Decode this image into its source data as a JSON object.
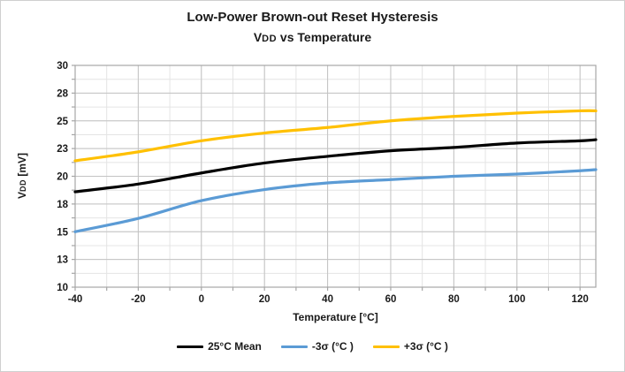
{
  "chart": {
    "title_line1": "Low-Power Brown-out Reset Hysteresis",
    "subtitle": {
      "prefix": "V",
      "sub": "DD",
      "rest": " vs Temperature"
    },
    "y_axis_title": {
      "prefix": "V",
      "sub": "DD",
      "rest": " [mV]"
    },
    "x_axis_title": "Temperature [°C]"
  },
  "chart_data": {
    "type": "line",
    "title": "Low-Power Brown-out Reset Hysteresis — VDD vs Temperature",
    "xlabel": "Temperature [°C]",
    "ylabel": "VDD [mV]",
    "xlim": [
      -40,
      125
    ],
    "ylim": [
      10,
      30
    ],
    "grid": "major+minor",
    "legend_position": "bottom",
    "x": [
      -40,
      -20,
      0,
      20,
      40,
      60,
      80,
      100,
      120,
      125
    ],
    "series": [
      {
        "name": "25°C Mean",
        "color": "#000000",
        "values": [
          18.6,
          19.3,
          20.3,
          21.2,
          21.8,
          22.3,
          22.6,
          23.0,
          23.2,
          23.3
        ]
      },
      {
        "name": "-3σ (°C )",
        "color": "#5B9BD5",
        "values": [
          15.0,
          16.2,
          17.8,
          18.8,
          19.4,
          19.7,
          20.0,
          20.2,
          20.5,
          20.6
        ]
      },
      {
        "name": "+3σ (°C )",
        "color": "#FFC000",
        "values": [
          21.4,
          22.2,
          23.2,
          23.9,
          24.4,
          25.0,
          25.4,
          25.7,
          25.9,
          25.9
        ]
      }
    ],
    "x_major_ticks": [
      -40,
      -20,
      0,
      20,
      40,
      60,
      80,
      100,
      120
    ],
    "x_tick_labels": [
      "-40",
      "-20",
      "0",
      "20",
      "40",
      "60",
      "80",
      "100",
      "120"
    ],
    "x_minor_step": 10,
    "y_major_ticks": [
      10,
      12.5,
      15,
      17.5,
      20,
      22.5,
      25,
      27.5,
      30
    ],
    "y_tick_labels": [
      "10",
      "13",
      "15",
      "18",
      "20",
      "23",
      "25",
      "28",
      "30"
    ],
    "y_minor_step": 1.25,
    "colors": {
      "major_grid": "#c3c3c3",
      "minor_grid": "#e4e4e4",
      "axis": "#a6a6a6",
      "plot_border": "#a6a6a6",
      "background": "#ffffff"
    }
  }
}
